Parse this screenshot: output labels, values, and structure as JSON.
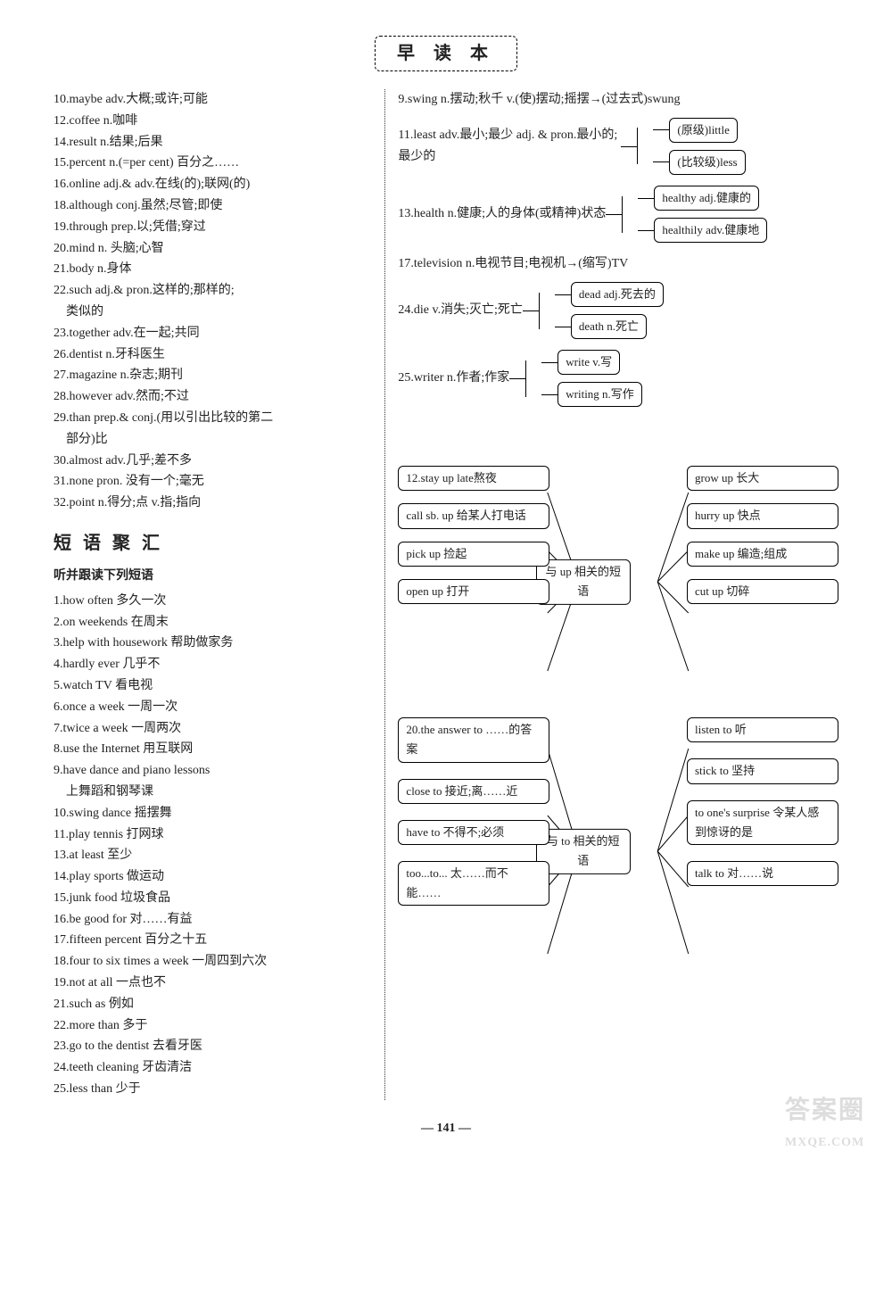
{
  "pageTitle": "早 读 本",
  "vocabLeft": [
    "10.maybe adv.大概;或许;可能",
    "12.coffee n.咖啡",
    "14.result n.结果;后果",
    "15.percent n.(=per cent) 百分之……",
    "16.online adj.& adv.在线(的);联网(的)",
    "18.although conj.虽然;尽管;即使",
    "19.through prep.以;凭借;穿过",
    "20.mind n. 头脑;心智",
    "21.body n.身体",
    "22.such adj.& pron.这样的;那样的;",
    "　类似的",
    "23.together adv.在一起;共同",
    "26.dentist n.牙科医生",
    "27.magazine n.杂志;期刊",
    "28.however adv.然而;不过",
    "29.than prep.& conj.(用以引出比较的第二",
    "　部分)比",
    "30.almost adv.几乎;差不多",
    "31.none  pron. 没有一个;毫无",
    "32.point n.得分;点 v.指;指向"
  ],
  "rightTopLine": "9.swing n.摆动;秋千 v.(使)摆动;摇摆→(过去式)swung",
  "branch11": {
    "label": "11.least adv.最小;最少 adj. & pron.最小的;最少的",
    "leaves": [
      "(原级)little",
      "(比较级)less"
    ]
  },
  "branch13": {
    "label": "13.health n.健康;人的身体(或精神)状态",
    "leaves": [
      "healthy adj.健康的",
      "healthily adv.健康地"
    ]
  },
  "line17": "17.television n.电视节目;电视机→(缩写)TV",
  "branch24": {
    "label": "24.die v.消失;灭亡;死亡",
    "leaves": [
      "dead adj.死去的",
      "death n.死亡"
    ]
  },
  "branch25": {
    "label": "25.writer n.作者;作家",
    "leaves": [
      "write v.写",
      "writing n.写作"
    ]
  },
  "sectionTitle": "短 语 聚 汇",
  "phraseInst": "听并跟读下列短语",
  "phrases": [
    "1.how often 多久一次",
    "2.on weekends 在周末",
    "3.help with housework 帮助做家务",
    "4.hardly ever 几乎不",
    "5.watch TV 看电视",
    "6.once a week 一周一次",
    "7.twice a week 一周两次",
    "8.use the Internet 用互联网",
    "9.have dance and piano lessons",
    "　上舞蹈和钢琴课",
    "10.swing dance 摇摆舞",
    "11.play tennis 打网球",
    "13.at least 至少",
    "14.play sports 做运动",
    "15.junk food 垃圾食品",
    "16.be good for 对……有益",
    "17.fifteen percent 百分之十五",
    "18.four to six times a week 一周四到六次",
    "19.not at all 一点也不",
    "21.such as 例如",
    "22.more than 多于",
    "23.go to the dentist 去看牙医",
    "24.teeth cleaning 牙齿清洁",
    "25.less than 少于"
  ],
  "upCluster": {
    "center": "与 up 相关的短语",
    "left": [
      "12.stay up late熬夜",
      "call sb. up 给某人打电话",
      "pick up 捡起",
      "open up 打开"
    ],
    "right": [
      "grow up 长大",
      "hurry up 快点",
      "make up 编造;组成",
      "cut up 切碎"
    ]
  },
  "toCluster": {
    "center": "与 to 相关的短语",
    "left": [
      "20.the answer to ……的答案",
      "close to 接近;离……近",
      "have to 不得不;必须",
      "too...to... 太……而不能……"
    ],
    "right": [
      "listen to 听",
      "stick to 坚持",
      "to one's surprise 令某人感到惊讶的是",
      "talk to 对……说"
    ]
  },
  "pageNum": "— 141 —",
  "watermark": "答案圈",
  "watermarkUrl": "MXQE.COM",
  "colors": {
    "text": "#222222",
    "border": "#000000",
    "dot": "#333333",
    "wm": "#dddddd",
    "bg": "#ffffff"
  }
}
